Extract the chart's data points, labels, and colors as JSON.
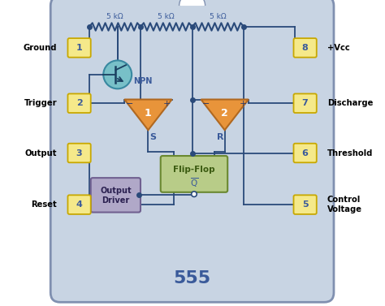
{
  "bg_color": "#c8d4e3",
  "chip_edge": "#8090b0",
  "pin_box_fill": "#f5e98a",
  "pin_box_edge": "#c8a800",
  "text_color": "#3a5a9a",
  "wire_color": "#2a4a7a",
  "comp_orange": "#e8943a",
  "comp_edge": "#b06820",
  "comp_teal_fill": "#78c0c8",
  "comp_teal_edge": "#3888a0",
  "flipflop_fill": "#b8cc88",
  "flipflop_edge": "#6a8830",
  "output_driver_fill": "#b0a8c8",
  "output_driver_edge": "#706090",
  "title": "555",
  "pin_labels_left": [
    "Ground",
    "Trigger",
    "Output",
    "Reset"
  ],
  "pin_labels_right": [
    "+Vcc",
    "Discharge",
    "Threshold",
    "Control\nVoltage"
  ],
  "pin_numbers_left": [
    "1",
    "2",
    "3",
    "4"
  ],
  "pin_numbers_right": [
    "8",
    "7",
    "6",
    "5"
  ],
  "resistor_labels": [
    "5 kΩ",
    "5 kΩ",
    "5 kΩ"
  ]
}
